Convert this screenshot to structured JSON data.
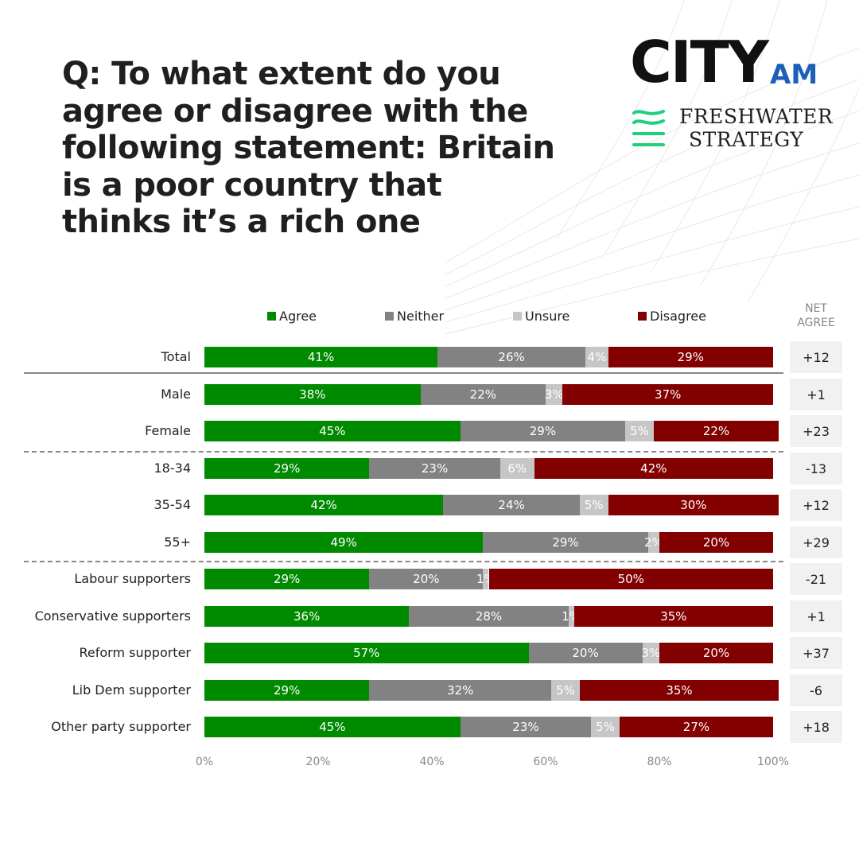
{
  "title": "Q: To what extent do you agree or disagree with the following statement: Britain is a poor country that thinks it’s a rich one",
  "logos": {
    "city_main": "CITY",
    "city_am": "AM",
    "fresh_line1": "FRESHWATER",
    "fresh_line2": "STRATEGY"
  },
  "net_header": "NET AGREE",
  "colors": {
    "agree": "#008a00",
    "neither": "#828282",
    "unsure": "#c6c6c6",
    "disagree": "#820000"
  },
  "chart_data": {
    "type": "bar",
    "orientation": "horizontal",
    "stacked": true,
    "title": "Q: To what extent do you agree or disagree with the following statement: Britain is a poor country that thinks it’s a rich one",
    "categories": [
      "Total",
      "Male",
      "Female",
      "18-34",
      "35-54",
      "55+",
      "Labour supporters",
      "Conservative supporters",
      "Reform supporter",
      "Lib Dem supporter",
      "Other party supporter"
    ],
    "series": [
      {
        "name": "Agree",
        "values": [
          41,
          38,
          45,
          29,
          42,
          49,
          29,
          36,
          57,
          29,
          45
        ]
      },
      {
        "name": "Neither",
        "values": [
          26,
          22,
          29,
          23,
          24,
          29,
          20,
          28,
          20,
          32,
          23
        ]
      },
      {
        "name": "Unsure",
        "values": [
          4,
          3,
          5,
          6,
          5,
          2,
          1,
          1,
          3,
          5,
          5
        ]
      },
      {
        "name": "Disagree",
        "values": [
          29,
          37,
          22,
          42,
          30,
          20,
          50,
          35,
          20,
          35,
          27
        ]
      }
    ],
    "net_agree": [
      "+12",
      "+1",
      "+23",
      "-13",
      "+12",
      "+29",
      "-21",
      "+1",
      "+37",
      "-6",
      "+18"
    ],
    "x_ticks": [
      "0%",
      "20%",
      "40%",
      "60%",
      "80%",
      "100%"
    ],
    "xlim": [
      0,
      100
    ],
    "legend_position": "top",
    "grid": false
  }
}
